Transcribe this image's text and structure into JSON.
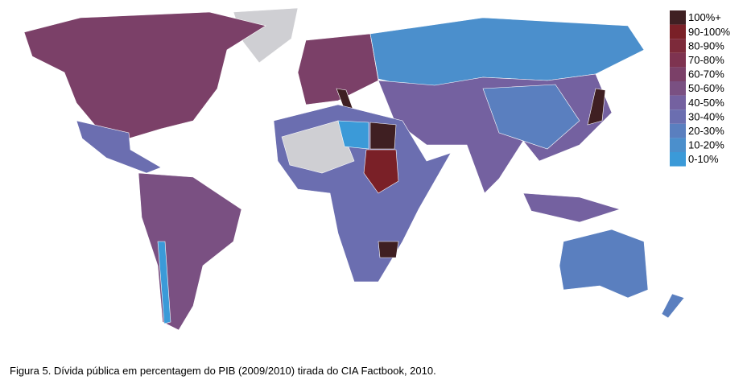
{
  "legend": {
    "items": [
      {
        "label": "100%+",
        "color": "#3f1f22"
      },
      {
        "label": "90-100%",
        "color": "#7a2027"
      },
      {
        "label": "80-90%",
        "color": "#7d2a3a"
      },
      {
        "label": "70-80%",
        "color": "#7e3350"
      },
      {
        "label": "60-70%",
        "color": "#7b4068"
      },
      {
        "label": "50-60%",
        "color": "#7a5082"
      },
      {
        "label": "40-50%",
        "color": "#7461a0"
      },
      {
        "label": "30-40%",
        "color": "#6b6eb0"
      },
      {
        "label": "20-30%",
        "color": "#5a7fbf"
      },
      {
        "label": "10-20%",
        "color": "#4b8fcc"
      },
      {
        "label": "0-10%",
        "color": "#3b9ad8"
      }
    ]
  },
  "caption": "Figura 5. Dívida pública em percentagem do PIB (2009/2010) tirada do CIA Factbook, 2010."
}
